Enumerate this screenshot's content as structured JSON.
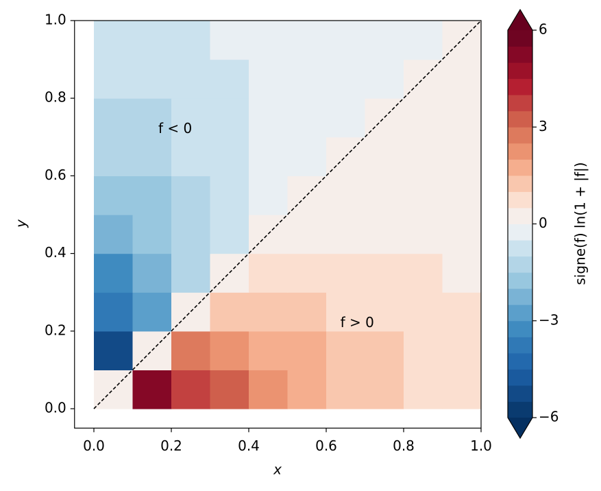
{
  "chart_data": {
    "type": "contourf",
    "xlabel": "x",
    "ylabel": "y",
    "colorbar_label": "signe(f) ln(1 + |f|)",
    "annotations": [
      "f < 0",
      "f > 0"
    ],
    "x": [
      0.05,
      0.15,
      0.25,
      0.35,
      0.45,
      0.55,
      0.65,
      0.75,
      0.85,
      0.95
    ],
    "y": [
      0.05,
      0.15,
      0.25,
      0.35,
      0.45,
      0.55,
      0.65,
      0.75,
      0.85,
      0.95
    ],
    "z": [
      [
        0,
        5.08,
        3.88,
        3.01,
        2.35,
        1.85,
        1.46,
        1.16,
        0.93,
        0.74
      ],
      [
        -5.08,
        0,
        2.7,
        2.35,
        1.94,
        1.57,
        1.26,
        1.01,
        0.82,
        0.66
      ],
      [
        -3.88,
        -2.7,
        0,
        1.37,
        1.35,
        1.18,
        0.99,
        0.82,
        0.68,
        0.56
      ],
      [
        -3.01,
        -2.35,
        -1.37,
        0,
        0.67,
        0.75,
        0.7,
        0.62,
        0.53,
        0.45
      ],
      [
        -2.35,
        -1.94,
        -1.35,
        -0.67,
        0,
        0.33,
        0.41,
        0.41,
        0.38,
        0.34
      ],
      [
        -1.85,
        -1.57,
        -1.18,
        -0.75,
        -0.33,
        0,
        0.17,
        0.24,
        0.25,
        0.24
      ],
      [
        -1.46,
        -1.26,
        -0.99,
        -0.7,
        -0.41,
        -0.17,
        0,
        0.1,
        0.14,
        0.16
      ],
      [
        -1.16,
        -1.01,
        -0.82,
        -0.62,
        -0.41,
        -0.24,
        -0.1,
        0,
        0.06,
        0.09
      ],
      [
        -0.93,
        -0.82,
        -0.68,
        -0.53,
        -0.38,
        -0.25,
        -0.14,
        -0.06,
        0,
        0.04
      ],
      [
        -0.74,
        -0.66,
        -0.56,
        -0.45,
        -0.34,
        -0.24,
        -0.16,
        -0.09,
        -0.04,
        0
      ]
    ],
    "levels": [
      -6,
      -5.5,
      -5,
      -4.5,
      -4,
      -3.5,
      -3,
      -2.5,
      -2,
      -1.5,
      -1,
      -0.5,
      0,
      0.5,
      1,
      1.5,
      2,
      2.5,
      3,
      3.5,
      4,
      4.5,
      5,
      5.5,
      6
    ],
    "colors": [
      "#0a3b70",
      "#124a87",
      "#1a5a9e",
      "#2369ad",
      "#3079b6",
      "#3f8bc0",
      "#5b9fcb",
      "#7ab3d5",
      "#98c7df",
      "#b3d5e7",
      "#cbe2ee",
      "#e9eff3",
      "#f6eeea",
      "#fbdfd0",
      "#f9c7ae",
      "#f5ae8e",
      "#eb9371",
      "#dd7a5d",
      "#cf5f4c",
      "#c24140",
      "#b51f31",
      "#9c1129",
      "#850826",
      "#6f0422"
    ],
    "under_color": "#053061",
    "over_color": "#67001f",
    "xlim": [
      -0.05,
      1.0
    ],
    "ylim": [
      -0.05,
      1.0
    ],
    "xticks": [
      {
        "value": 0,
        "label": "0.0"
      },
      {
        "value": 0.2,
        "label": "0.2"
      },
      {
        "value": 0.4,
        "label": "0.4"
      },
      {
        "value": 0.6,
        "label": "0.6"
      },
      {
        "value": 0.8,
        "label": "0.8"
      },
      {
        "value": 1,
        "label": "1.0"
      }
    ],
    "yticks": [
      {
        "value": 0,
        "label": "0.0"
      },
      {
        "value": 0.2,
        "label": "0.2"
      },
      {
        "value": 0.4,
        "label": "0.4"
      },
      {
        "value": 0.6,
        "label": "0.6"
      },
      {
        "value": 0.8,
        "label": "0.8"
      },
      {
        "value": 1,
        "label": "1.0"
      }
    ],
    "cbar_ticks": [
      {
        "value": -6,
        "label": "−6"
      },
      {
        "value": -3,
        "label": "−3"
      },
      0,
      3,
      6
    ]
  }
}
